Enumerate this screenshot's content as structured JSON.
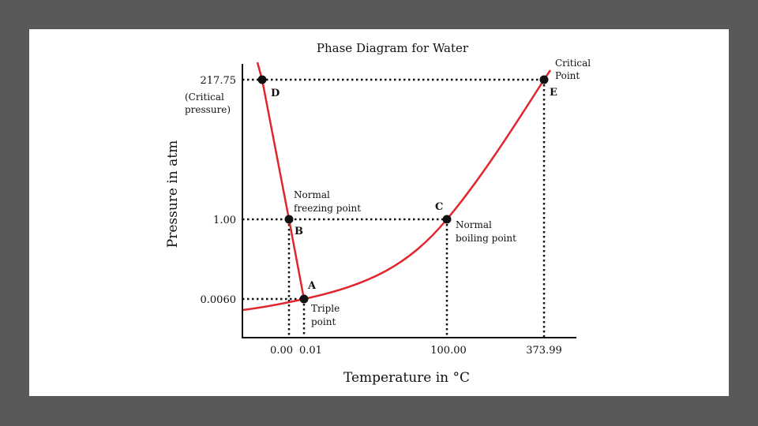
{
  "chart_data": {
    "type": "line",
    "title": "Phase Diagram for Water",
    "xlabel": "Temperature in °C",
    "ylabel": "Pressure in atm",
    "x_ticks": [
      "0.00",
      "0.01",
      "100.00",
      "373.99"
    ],
    "y_ticks": [
      "217.75",
      "1.00",
      "0.0060"
    ],
    "critical_pressure_note": [
      "(Critical",
      "pressure)"
    ],
    "curve_color": "#e0262c",
    "points": [
      {
        "id": "A",
        "x": 0.01,
        "y": 0.006,
        "label": [
          "Triple",
          "point"
        ]
      },
      {
        "id": "B",
        "x": 0.0,
        "y": 1.0,
        "label": [
          "Normal",
          "freezing point"
        ]
      },
      {
        "id": "C",
        "x": 100.0,
        "y": 1.0,
        "label": [
          "Normal",
          "boiling point"
        ]
      },
      {
        "id": "D",
        "x": -0.02,
        "y": 217.75,
        "label": []
      },
      {
        "id": "E",
        "x": 373.99,
        "y": 217.75,
        "label": [
          "Critical",
          "Point"
        ]
      }
    ],
    "series": [
      {
        "name": "",
        "points": [
          [
            -0.02,
            217.75
          ],
          [
            0.0,
            1.0
          ],
          [
            0.01,
            0.006
          ]
        ]
      },
      {
        "name": "",
        "points": [
          [
            0.01,
            0.006
          ],
          [
            100.0,
            1.0
          ],
          [
            373.99,
            217.75
          ]
        ]
      }
    ]
  }
}
